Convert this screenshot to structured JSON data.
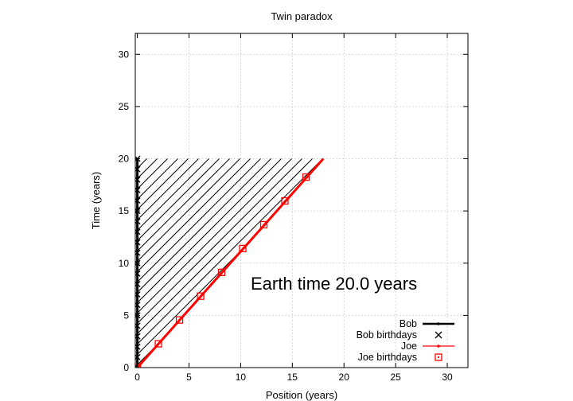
{
  "chart_data": {
    "type": "line",
    "title": "Twin paradox",
    "xlabel": "Position (years)",
    "ylabel": "Time (years)",
    "xlim": [
      -0.2,
      32
    ],
    "ylim": [
      0,
      32
    ],
    "x_ticks": [
      0,
      5,
      10,
      15,
      20,
      25,
      30
    ],
    "y_ticks": [
      0,
      5,
      10,
      15,
      20,
      25,
      30
    ],
    "grid": true,
    "legend_position": "bottom-right",
    "annotation": "Earth time 20.0 years",
    "series": [
      {
        "name": "Bob",
        "type": "line",
        "color": "#000000",
        "x": [
          0,
          0
        ],
        "y": [
          0,
          20
        ]
      },
      {
        "name": "Bob birthdays",
        "type": "scatter",
        "marker": "x",
        "color": "#000000",
        "x": [
          0,
          0,
          0,
          0,
          0,
          0,
          0,
          0,
          0,
          0,
          0,
          0,
          0,
          0,
          0,
          0,
          0,
          0,
          0,
          0,
          0
        ],
        "y": [
          0,
          1,
          2,
          3,
          4,
          5,
          6,
          7,
          8,
          9,
          10,
          11,
          12,
          13,
          14,
          15,
          16,
          17,
          18,
          19,
          20
        ]
      },
      {
        "name": "Joe",
        "type": "line",
        "color": "#ff0000",
        "x": [
          0,
          18
        ],
        "y": [
          0,
          20
        ]
      },
      {
        "name": "Joe birthdays",
        "type": "scatter",
        "marker": "square",
        "color": "#ff0000",
        "x": [
          0,
          2.04,
          4.08,
          6.12,
          8.16,
          10.2,
          12.24,
          14.28,
          16.32
        ],
        "y": [
          0,
          2.28,
          4.56,
          6.84,
          9.12,
          11.4,
          13.68,
          15.96,
          18.24
        ]
      }
    ],
    "shaded_region": {
      "pattern": "diagonal-hatch",
      "color": "#000000",
      "x": [
        0,
        18,
        0
      ],
      "y": [
        0,
        20,
        20
      ]
    }
  }
}
